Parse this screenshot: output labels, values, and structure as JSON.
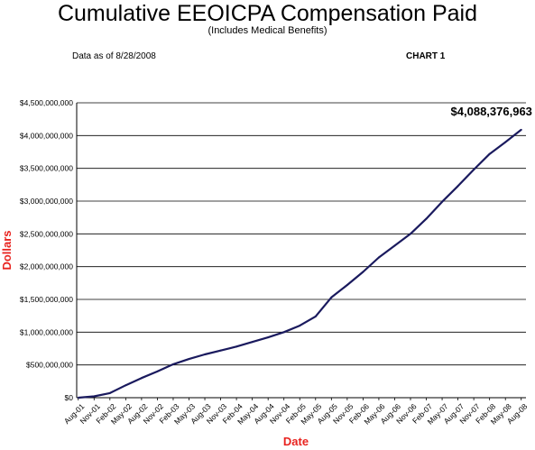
{
  "header": {
    "title": "Cumulative EEOICPA Compensation Paid",
    "subtitle": "(Includes Medical Benefits)",
    "as_of": "Data as of 8/28/2008",
    "chart_number": "CHART 1"
  },
  "chart_data": {
    "type": "line",
    "xlabel": "Date",
    "ylabel": "Dollars",
    "ylim": [
      0,
      4500000000
    ],
    "ytick_values": [
      0,
      500000000,
      1000000000,
      1500000000,
      2000000000,
      2500000000,
      3000000000,
      3500000000,
      4000000000,
      4500000000
    ],
    "ytick_labels": [
      "$0",
      "$500,000,000",
      "$1,000,000,000",
      "$1,500,000,000",
      "$2,000,000,000",
      "$2,500,000,000",
      "$3,000,000,000",
      "$3,500,000,000",
      "$4,000,000,000",
      "$4,500,000,000"
    ],
    "xtick_labels": [
      "Aug-01",
      "Nov-01",
      "Feb-02",
      "May-02",
      "Aug-02",
      "Nov-02",
      "Feb-03",
      "May-03",
      "Aug-03",
      "Nov-03",
      "Feb-04",
      "May-04",
      "Aug-04",
      "Nov-04",
      "Feb-05",
      "May-05",
      "Aug-05",
      "Nov-05",
      "Feb-06",
      "May-06",
      "Aug-06",
      "Nov-06",
      "Feb-07",
      "May-07",
      "Aug-07",
      "Nov-07",
      "Feb-08",
      "May-08",
      "Aug-08"
    ],
    "grid": "horizontal",
    "colors": {
      "line": "#1a1a5e",
      "axis_titles": "#e8231f"
    },
    "annotation": {
      "text": "$4,088,376,963",
      "value": 4088376963,
      "x_index": 28
    },
    "series": [
      {
        "values": [
          0,
          20000000,
          70000000,
          190000000,
          300000000,
          400000000,
          510000000,
          590000000,
          660000000,
          720000000,
          780000000,
          850000000,
          920000000,
          1000000000,
          1100000000,
          1240000000,
          1530000000,
          1720000000,
          1920000000,
          2140000000,
          2320000000,
          2500000000,
          2730000000,
          2990000000,
          3230000000,
          3480000000,
          3720000000,
          3900000000,
          4088376963
        ]
      }
    ]
  }
}
